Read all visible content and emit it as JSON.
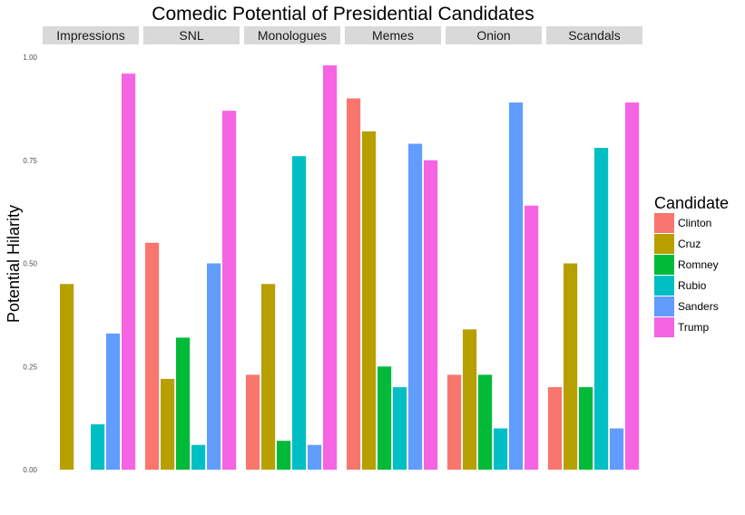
{
  "chart_data": {
    "type": "bar",
    "title": "Comedic Potential of Presidential Candidates",
    "xlabel": "",
    "ylabel": "Potential Hilarity",
    "ylim": [
      0,
      1
    ],
    "yticks": [
      "0.00",
      "0.25",
      "0.50",
      "0.75",
      "1.00"
    ],
    "grid": false,
    "facets": [
      "Impressions",
      "SNL",
      "Monologues",
      "Memes",
      "Onion",
      "Scandals"
    ],
    "legend": {
      "title": "Candidate",
      "placement": "right"
    },
    "series": [
      {
        "name": "Clinton",
        "color": "#F8766D",
        "values": [
          0.0,
          0.55,
          0.23,
          0.9,
          0.23,
          0.2
        ]
      },
      {
        "name": "Cruz",
        "color": "#B79F00",
        "values": [
          0.45,
          0.22,
          0.45,
          0.82,
          0.34,
          0.5
        ]
      },
      {
        "name": "Romney",
        "color": "#00BA38",
        "values": [
          0.0,
          0.32,
          0.07,
          0.25,
          0.23,
          0.2
        ]
      },
      {
        "name": "Rubio",
        "color": "#00BFC4",
        "values": [
          0.11,
          0.06,
          0.76,
          0.2,
          0.1,
          0.78
        ]
      },
      {
        "name": "Sanders",
        "color": "#619CFF",
        "values": [
          0.33,
          0.5,
          0.06,
          0.79,
          0.89,
          0.1
        ]
      },
      {
        "name": "Trump",
        "color": "#F564E3",
        "values": [
          0.96,
          0.87,
          0.98,
          0.75,
          0.64,
          0.89
        ]
      }
    ]
  }
}
